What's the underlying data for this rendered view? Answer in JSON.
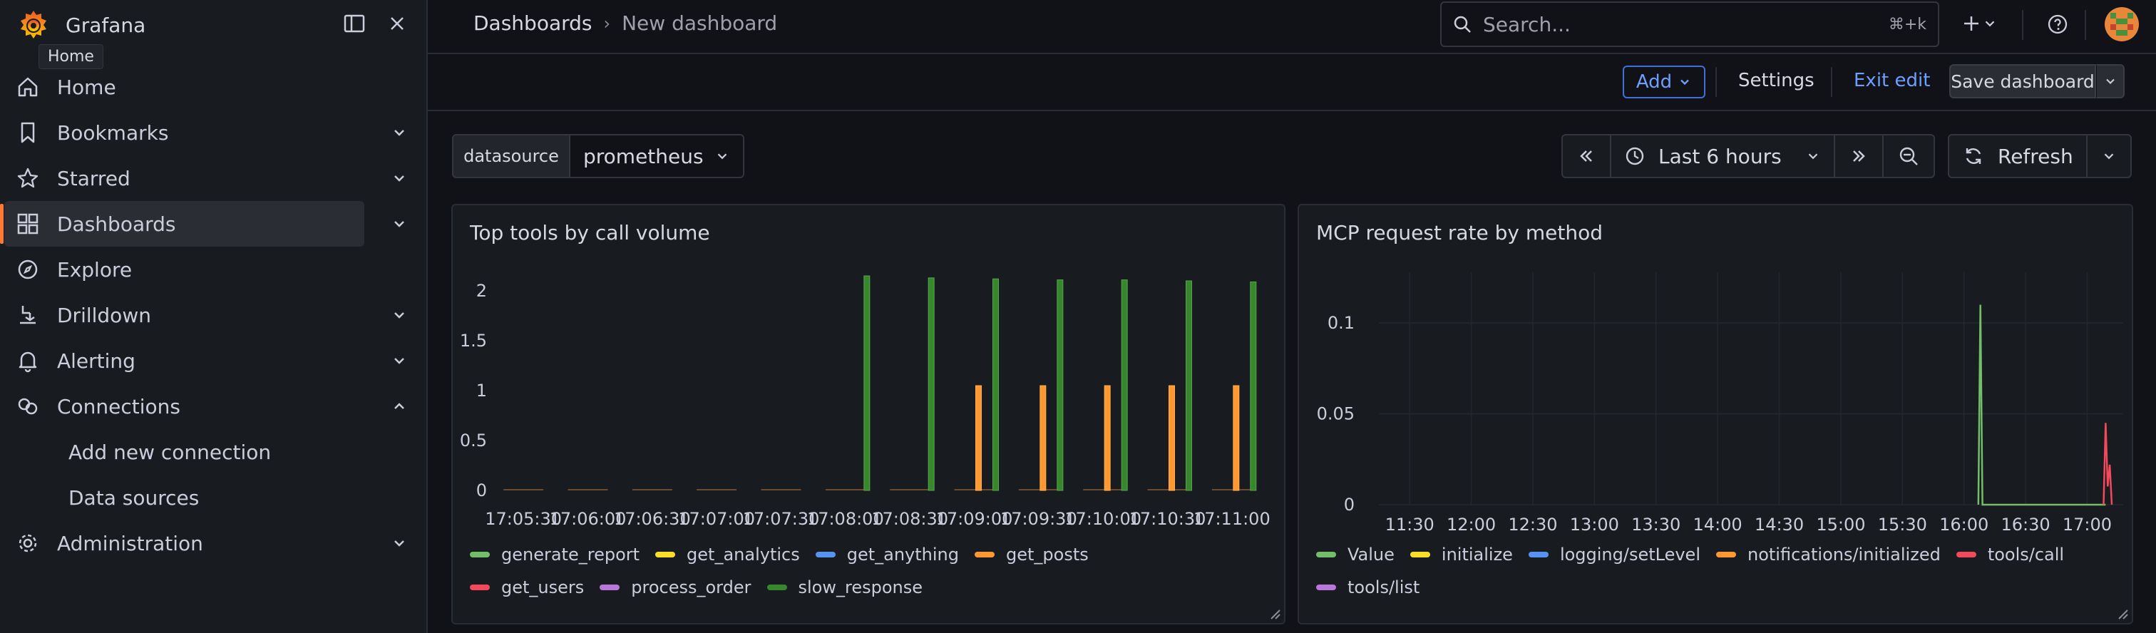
{
  "app": {
    "name": "Grafana",
    "home_tooltip": "Home"
  },
  "sidebar": {
    "items": [
      {
        "label": "Home",
        "icon": "home-icon",
        "has_chevron": false
      },
      {
        "label": "Bookmarks",
        "icon": "bookmark-icon",
        "has_chevron": true
      },
      {
        "label": "Starred",
        "icon": "star-icon",
        "has_chevron": true
      },
      {
        "label": "Dashboards",
        "icon": "apps-icon",
        "has_chevron": true,
        "active": true
      },
      {
        "label": "Explore",
        "icon": "compass-icon",
        "has_chevron": false
      },
      {
        "label": "Drilldown",
        "icon": "drilldown-icon",
        "has_chevron": true
      },
      {
        "label": "Alerting",
        "icon": "bell-icon",
        "has_chevron": true
      },
      {
        "label": "Connections",
        "icon": "connections-icon",
        "has_chevron": true,
        "expanded": true
      },
      {
        "label": "Add new connection",
        "sub": true
      },
      {
        "label": "Data sources",
        "sub": true
      },
      {
        "label": "Administration",
        "icon": "cog-icon",
        "has_chevron": true
      }
    ]
  },
  "topbar": {
    "breadcrumb": [
      "Dashboards",
      "New dashboard"
    ],
    "search_placeholder": "Search...",
    "search_shortcut": "⌘+k"
  },
  "toolbar": {
    "add_label": "Add",
    "settings_label": "Settings",
    "exit_edit_label": "Exit edit",
    "save_label": "Save dashboard"
  },
  "controls": {
    "variable_label": "datasource",
    "variable_value": "prometheus",
    "time_range": "Last 6 hours",
    "refresh_label": "Refresh"
  },
  "colors": {
    "accent": "#ff7833",
    "link": "#6e9fff",
    "green": "#73bf69",
    "yellow": "#fade2a",
    "blue": "#5794f2",
    "orange": "#ff9830",
    "red": "#f2495c",
    "purple": "#b877d9",
    "dark_green": "#37872d"
  },
  "panels": [
    {
      "title": "Top tools by call volume",
      "legend": [
        {
          "name": "generate_report",
          "color": "#73bf69"
        },
        {
          "name": "get_analytics",
          "color": "#fade2a"
        },
        {
          "name": "get_anything",
          "color": "#5794f2"
        },
        {
          "name": "get_posts",
          "color": "#ff9830"
        },
        {
          "name": "get_users",
          "color": "#f2495c"
        },
        {
          "name": "process_order",
          "color": "#b877d9"
        },
        {
          "name": "slow_response",
          "color": "#37872d"
        }
      ]
    },
    {
      "title": "MCP request rate by method",
      "legend": [
        {
          "name": "Value",
          "color": "#73bf69"
        },
        {
          "name": "initialize",
          "color": "#fade2a"
        },
        {
          "name": "logging/setLevel",
          "color": "#5794f2"
        },
        {
          "name": "notifications/initialized",
          "color": "#ff9830"
        },
        {
          "name": "tools/call",
          "color": "#f2495c"
        },
        {
          "name": "tools/list",
          "color": "#b877d9"
        }
      ]
    }
  ],
  "chart_data": [
    {
      "type": "bar",
      "title": "Top tools by call volume",
      "categories": [
        "17:05:30",
        "17:06:00",
        "17:06:30",
        "17:07:00",
        "17:07:30",
        "17:08:00",
        "17:08:30",
        "17:09:00",
        "17:09:30",
        "17:10:00",
        "17:10:30",
        "17:11:00"
      ],
      "yticks": [
        "0",
        "0.5",
        "1",
        "1.5",
        "2"
      ],
      "ylim": [
        0,
        2.2
      ],
      "series": [
        {
          "name": "get_posts",
          "color": "#ff9830",
          "values": [
            0,
            0,
            0,
            0,
            0,
            0,
            0,
            1.05,
            1.05,
            1.05,
            1.05,
            1.05
          ]
        },
        {
          "name": "slow_response",
          "color": "#37872d",
          "values": [
            0,
            0,
            0,
            0,
            0,
            2.15,
            2.13,
            2.12,
            2.11,
            2.11,
            2.1,
            2.09
          ]
        }
      ]
    },
    {
      "type": "line",
      "title": "MCP request rate by method",
      "xticks": [
        "11:30",
        "12:00",
        "12:30",
        "13:00",
        "13:30",
        "14:00",
        "14:30",
        "15:00",
        "15:30",
        "16:00",
        "16:30",
        "17:00"
      ],
      "yticks": [
        "0",
        "0.05",
        "0.1"
      ],
      "ylim": [
        0,
        0.12
      ],
      "series": [
        {
          "name": "Value",
          "color": "#73bf69",
          "x": [
            "16:07",
            "16:08",
            "16:09",
            "16:10",
            "17:08",
            "17:09"
          ],
          "values": [
            0,
            0.11,
            0,
            0,
            0,
            0
          ]
        },
        {
          "name": "tools/call",
          "color": "#f2495c",
          "x": [
            "17:08",
            "17:09",
            "17:10",
            "17:11",
            "17:12"
          ],
          "values": [
            0,
            0.045,
            0.01,
            0.022,
            0
          ]
        }
      ]
    }
  ]
}
